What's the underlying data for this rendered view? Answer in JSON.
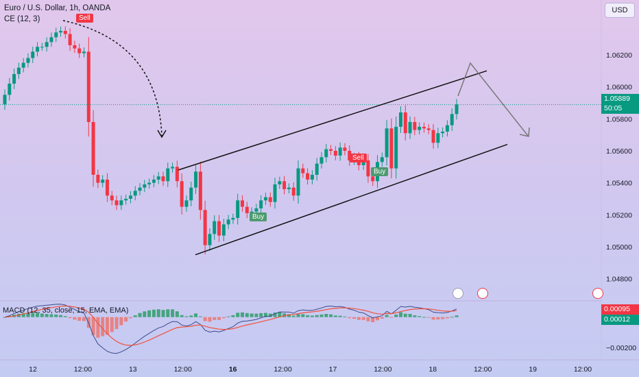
{
  "header": {
    "title": "Euro / U.S. Dollar, 1h, OANDA",
    "indicator": "CE (12, 3)",
    "macd_label": "MACD (12, 35, close, 15, EMA, EMA)"
  },
  "currency_button": "USD",
  "price_tag": {
    "value": "1.05889",
    "countdown": "50:05"
  },
  "macd_tags": {
    "macd": "0.00095",
    "histogram": "0.00012"
  },
  "markers": [
    {
      "label": "Sell",
      "type": "sell"
    },
    {
      "label": "Buy",
      "type": "buy"
    },
    {
      "label": "Sell",
      "type": "sell"
    },
    {
      "label": "Buy",
      "type": "buy"
    }
  ],
  "colors": {
    "up": "#089981",
    "down": "#f23645",
    "signal": "#f2513b",
    "macd_line": "#3a4a8a",
    "price_line": "#089981"
  },
  "chart_data": [
    {
      "type": "candlestick",
      "title": "Euro / U.S. Dollar, 1h, OANDA",
      "y_ticks": [
        "1.06200",
        "1.06000",
        "1.05800",
        "1.05600",
        "1.05400",
        "1.05200",
        "1.05000",
        "1.04800"
      ],
      "y_range": [
        1.047,
        1.065
      ],
      "x_ticks": [
        "12",
        "12:00",
        "13",
        "12:00",
        "16",
        "12:00",
        "17",
        "12:00",
        "18",
        "12:00",
        "19",
        "12:00"
      ],
      "last_price": 1.05889,
      "close": [
        1.0595,
        1.0602,
        1.0608,
        1.0612,
        1.0615,
        1.0618,
        1.0622,
        1.0625,
        1.0625,
        1.0628,
        1.0631,
        1.0634,
        1.0635,
        1.0633,
        1.0626,
        1.0624,
        1.0621,
        1.0622,
        1.0578,
        1.0545,
        1.054,
        1.0542,
        1.0532,
        1.0529,
        1.0526,
        1.0529,
        1.053,
        1.0532,
        1.0535,
        1.0537,
        1.0539,
        1.054,
        1.0542,
        1.0544,
        1.0541,
        1.0549,
        1.055,
        1.0541,
        1.0525,
        1.0529,
        1.0537,
        1.0547,
        1.0523,
        1.0501,
        1.0508,
        1.0516,
        1.0507,
        1.0514,
        1.0517,
        1.0518,
        1.0529,
        1.0525,
        1.0521,
        1.0522,
        1.0524,
        1.0529,
        1.0531,
        1.0528,
        1.0539,
        1.0541,
        1.0536,
        1.0537,
        1.0532,
        1.0549,
        1.0546,
        1.0542,
        1.0545,
        1.0552,
        1.0556,
        1.0561,
        1.056,
        1.0557,
        1.0562,
        1.056,
        1.0554,
        1.0556,
        1.0551,
        1.0554,
        1.0544,
        1.0541,
        1.0553,
        1.0556,
        1.0574,
        1.0549,
        1.0575,
        1.0584,
        1.0571,
        1.0578,
        1.0573,
        1.0575,
        1.0574,
        1.0573,
        1.0565,
        1.0571,
        1.0572,
        1.0576,
        1.0583,
        1.0589
      ],
      "signals": [
        {
          "label": "Sell",
          "x": "12, ~09:00",
          "price": 1.0636
        },
        {
          "label": "Buy",
          "x": "16, ~08:00",
          "price": 1.0518
        },
        {
          "label": "Sell",
          "x": "17, ~09:00",
          "price": 1.0556
        },
        {
          "label": "Buy",
          "x": "17, ~11:00",
          "price": 1.0545
        }
      ],
      "channel": {
        "upper": [
          [
            1.0548
          ],
          [
            1.061
          ]
        ],
        "lower": [
          [
            1.0495
          ],
          [
            1.0564
          ]
        ]
      }
    },
    {
      "type": "histogram",
      "title": "MACD (12, 35, close, 15, EMA, EMA)",
      "y_ticks": [
        "−0.00200"
      ],
      "y_range": [
        -0.0026,
        0.0008
      ],
      "macd_value": 0.00095,
      "histogram_value": 0.00012
    }
  ]
}
